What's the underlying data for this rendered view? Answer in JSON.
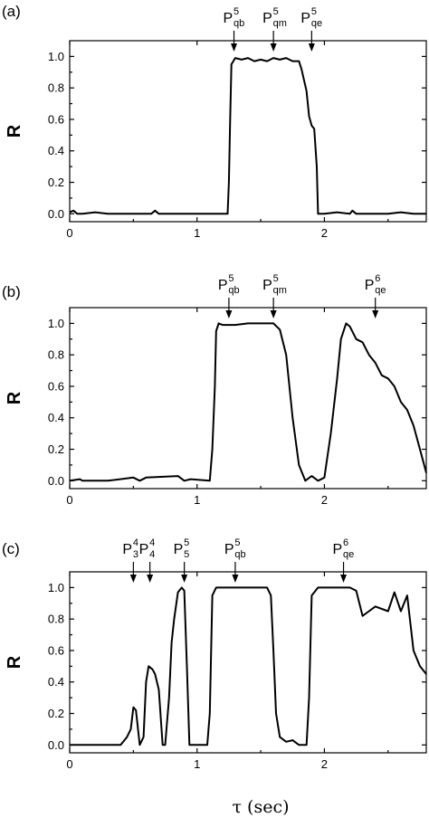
{
  "x_axis_label": "τ (sec)",
  "chart_data": [
    {
      "type": "line",
      "panel_label": "(a)",
      "ylabel": "R",
      "xlim": [
        0,
        2.8
      ],
      "ylim": [
        -0.05,
        1.1
      ],
      "x_ticks": [
        0,
        1,
        2
      ],
      "y_ticks": [
        "0.0",
        "0.2",
        "0.4",
        "0.6",
        "0.8",
        "1.0"
      ],
      "annotations": [
        {
          "sym": "P",
          "sup": "5",
          "sub": "qb",
          "x": 1.29
        },
        {
          "sym": "P",
          "sup": "5",
          "sub": "qm",
          "x": 1.6
        },
        {
          "sym": "P",
          "sup": "5",
          "sub": "qe",
          "x": 1.9
        }
      ],
      "series": [
        {
          "x": [
            0,
            0.03,
            0.06,
            0.1,
            0.2,
            0.3,
            0.5,
            0.64,
            0.67,
            0.7,
            0.9,
            1.1,
            1.24,
            1.25,
            1.26,
            1.27,
            1.3,
            1.35,
            1.4,
            1.45,
            1.5,
            1.55,
            1.6,
            1.65,
            1.7,
            1.75,
            1.8,
            1.82,
            1.84,
            1.86,
            1.88,
            1.9,
            1.92,
            1.94,
            1.95,
            2.0,
            2.1,
            2.2,
            2.22,
            2.25,
            2.3,
            2.5,
            2.6,
            2.7,
            2.8
          ],
          "y": [
            0.01,
            0.02,
            0.0,
            0.0,
            0.01,
            0.0,
            0.0,
            0.0,
            0.02,
            0.0,
            0.0,
            0.0,
            0.0,
            0.2,
            0.6,
            0.95,
            0.99,
            0.98,
            0.99,
            0.97,
            0.98,
            0.97,
            0.99,
            0.98,
            0.99,
            0.97,
            0.97,
            0.92,
            0.85,
            0.78,
            0.62,
            0.56,
            0.54,
            0.3,
            0.0,
            0.0,
            0.01,
            0.0,
            0.02,
            0.0,
            0.0,
            0.0,
            0.01,
            0.0,
            0.0
          ]
        }
      ]
    },
    {
      "type": "line",
      "panel_label": "(b)",
      "ylabel": "R",
      "xlim": [
        0,
        2.8
      ],
      "ylim": [
        -0.05,
        1.1
      ],
      "x_ticks": [
        0,
        1,
        2
      ],
      "y_ticks": [
        "0.0",
        "0.2",
        "0.4",
        "0.6",
        "0.8",
        "1.0"
      ],
      "annotations": [
        {
          "sym": "P",
          "sup": "5",
          "sub": "qb",
          "x": 1.25
        },
        {
          "sym": "P",
          "sup": "5",
          "sub": "qm",
          "x": 1.6
        },
        {
          "sym": "P",
          "sup": "6",
          "sub": "qe",
          "x": 2.4
        }
      ],
      "series": [
        {
          "x": [
            0,
            0.08,
            0.1,
            0.3,
            0.5,
            0.55,
            0.6,
            0.85,
            0.9,
            0.95,
            1.1,
            1.12,
            1.14,
            1.15,
            1.17,
            1.2,
            1.3,
            1.4,
            1.5,
            1.6,
            1.65,
            1.7,
            1.75,
            1.8,
            1.85,
            1.9,
            1.95,
            2.0,
            2.05,
            2.1,
            2.13,
            2.17,
            2.2,
            2.25,
            2.3,
            2.35,
            2.4,
            2.45,
            2.5,
            2.55,
            2.6,
            2.65,
            2.7,
            2.75,
            2.8
          ],
          "y": [
            0.0,
            0.01,
            0.0,
            0.0,
            0.02,
            0.0,
            0.02,
            0.03,
            0.0,
            0.01,
            0.0,
            0.2,
            0.6,
            0.95,
            1.0,
            0.99,
            0.99,
            1.0,
            1.0,
            1.0,
            0.96,
            0.8,
            0.4,
            0.1,
            0.0,
            0.03,
            0.0,
            0.02,
            0.3,
            0.65,
            0.9,
            1.0,
            0.98,
            0.9,
            0.88,
            0.8,
            0.75,
            0.67,
            0.65,
            0.6,
            0.5,
            0.45,
            0.35,
            0.2,
            0.05
          ]
        }
      ]
    },
    {
      "type": "line",
      "panel_label": "(c)",
      "ylabel": "R",
      "xlim": [
        0,
        2.8
      ],
      "ylim": [
        -0.05,
        1.1
      ],
      "x_ticks": [
        0,
        1,
        2
      ],
      "y_ticks": [
        "0.0",
        "0.2",
        "0.4",
        "0.6",
        "0.8",
        "1.0"
      ],
      "annotations": [
        {
          "sym": "P",
          "sup": "4",
          "sub": "3",
          "x": 0.5
        },
        {
          "sym": "P",
          "sup": "4",
          "sub": "4",
          "x": 0.63
        },
        {
          "sym": "P",
          "sup": "5",
          "sub": "5",
          "x": 0.9
        },
        {
          "sym": "P",
          "sup": "5",
          "sub": "qb",
          "x": 1.3
        },
        {
          "sym": "P",
          "sup": "6",
          "sub": "qe",
          "x": 2.15
        }
      ],
      "series": [
        {
          "x": [
            0,
            0.2,
            0.4,
            0.45,
            0.48,
            0.5,
            0.52,
            0.55,
            0.58,
            0.6,
            0.62,
            0.65,
            0.67,
            0.7,
            0.73,
            0.75,
            0.78,
            0.8,
            0.82,
            0.85,
            0.88,
            0.9,
            0.92,
            0.94,
            0.96,
            1.0,
            1.08,
            1.1,
            1.12,
            1.15,
            1.2,
            1.3,
            1.4,
            1.5,
            1.55,
            1.58,
            1.6,
            1.62,
            1.65,
            1.7,
            1.75,
            1.8,
            1.86,
            1.88,
            1.9,
            1.95,
            2.0,
            2.1,
            2.2,
            2.25,
            2.3,
            2.35,
            2.4,
            2.5,
            2.55,
            2.6,
            2.65,
            2.7,
            2.75,
            2.8
          ],
          "y": [
            0.0,
            0.0,
            0.0,
            0.05,
            0.1,
            0.24,
            0.22,
            0.0,
            0.05,
            0.4,
            0.5,
            0.48,
            0.45,
            0.35,
            0.0,
            0.0,
            0.3,
            0.65,
            0.8,
            0.97,
            1.0,
            0.98,
            0.5,
            0.0,
            0.0,
            0.0,
            0.0,
            0.2,
            0.95,
            1.0,
            1.0,
            1.0,
            1.0,
            1.0,
            1.0,
            0.95,
            0.6,
            0.2,
            0.05,
            0.02,
            0.03,
            0.0,
            0.0,
            0.3,
            0.95,
            1.0,
            1.0,
            1.0,
            1.0,
            0.98,
            0.82,
            0.85,
            0.88,
            0.85,
            0.97,
            0.85,
            0.95,
            0.6,
            0.5,
            0.45
          ]
        }
      ]
    }
  ]
}
